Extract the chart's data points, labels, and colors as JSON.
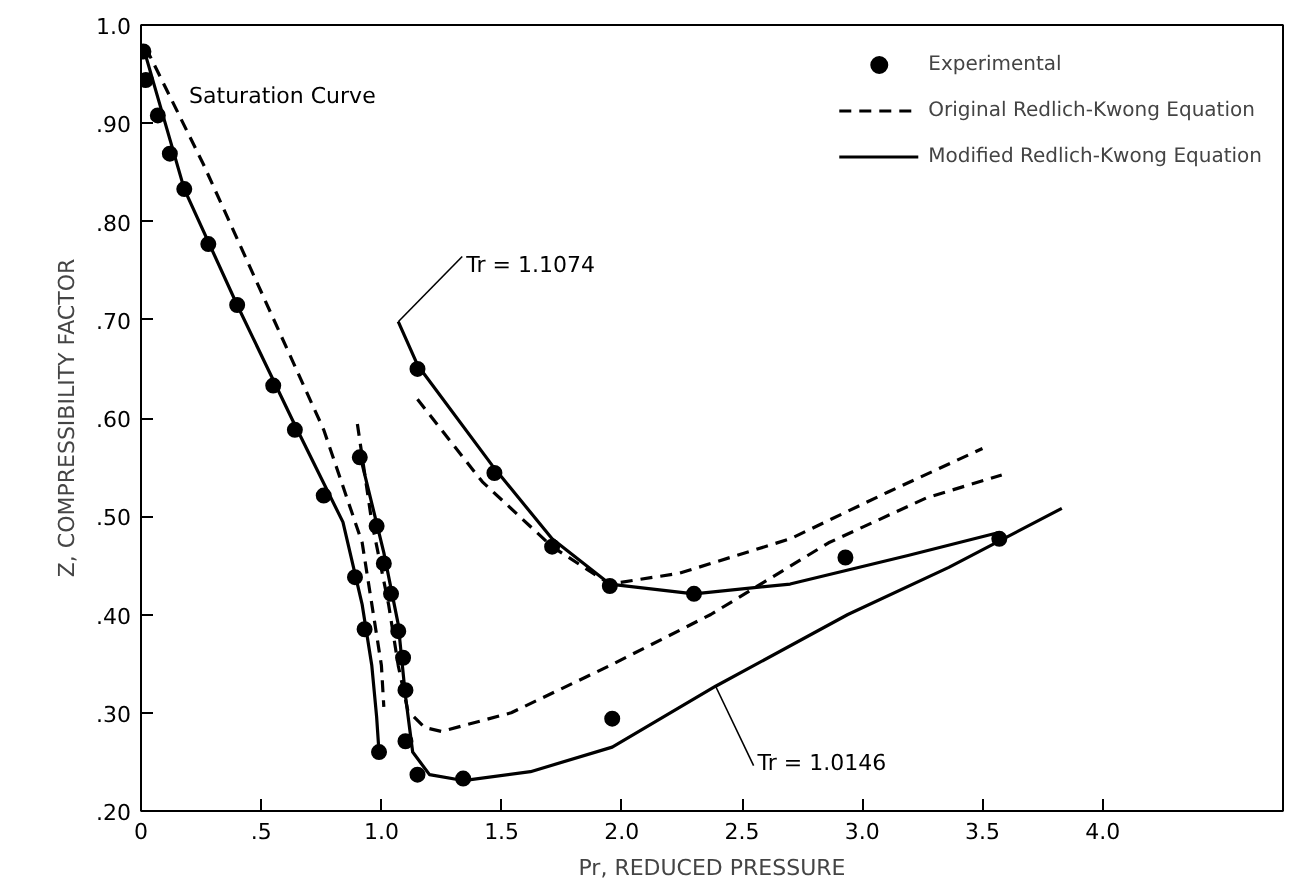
{
  "chart_data": {
    "type": "line",
    "xlabel": "Pr, REDUCED PRESSURE",
    "ylabel": "Z, COMPRESSIBILITY FACTOR",
    "xlim": [
      0,
      4.75
    ],
    "ylim": [
      0.2,
      1.0
    ],
    "xticks": [
      0,
      {
        "value": 0.5,
        "label": ".5"
      },
      {
        "value": 1.0,
        "label": "1.0"
      },
      {
        "value": 1.5,
        "label": "1.5"
      },
      {
        "value": 2.0,
        "label": "2.0"
      },
      {
        "value": 2.5,
        "label": "2.5"
      },
      {
        "value": 3.0,
        "label": "3.0"
      },
      {
        "value": 3.5,
        "label": "3.5"
      },
      {
        "value": 4.0,
        "label": "4.0"
      }
    ],
    "yticks": [
      {
        "value": 0.2,
        "label": ".20"
      },
      {
        "value": 0.3,
        "label": ".30"
      },
      {
        "value": 0.4,
        "label": ".40"
      },
      {
        "value": 0.5,
        "label": ".50"
      },
      {
        "value": 0.6,
        "label": ".60"
      },
      {
        "value": 0.7,
        "label": ".70"
      },
      {
        "value": 0.8,
        "label": ".80"
      },
      {
        "value": 0.9,
        "label": ".90"
      },
      {
        "value": 1.0,
        "label": "1.0"
      }
    ],
    "grid": false,
    "legend": "top right",
    "series": [
      {
        "type": "scatter",
        "name": "Experimental",
        "color": "#000000",
        "marker": "circle",
        "x": [
          0.01,
          0.02,
          0.07,
          0.12,
          0.18,
          0.28,
          0.4,
          0.55,
          0.64,
          0.76,
          0.89,
          0.93,
          0.99,
          0.91,
          0.98,
          1.01,
          1.04,
          1.07,
          1.09,
          1.1,
          1.1,
          1.15,
          1.34,
          1.96,
          1.15,
          1.47,
          1.71,
          1.95,
          2.3,
          2.93,
          3.57
        ],
        "values": [
          0.973,
          0.944,
          0.908,
          0.869,
          0.833,
          0.777,
          0.715,
          0.633,
          0.588,
          0.521,
          0.438,
          0.385,
          0.26,
          0.56,
          0.49,
          0.452,
          0.421,
          0.383,
          0.356,
          0.323,
          0.271,
          0.237,
          0.233,
          0.294,
          0.65,
          0.544,
          0.469,
          0.429,
          0.421,
          0.458,
          0.477
        ]
      },
      {
        "name": "Original Redlich-Kwong Equation",
        "color": "#000000",
        "line_style": "dashed",
        "x": [
          0.02,
          0.26,
          0.51,
          0.76,
          0.92,
          1.0,
          1.01
        ],
        "values": [
          0.977,
          0.858,
          0.723,
          0.588,
          0.473,
          0.348,
          0.306
        ]
      },
      {
        "name": "Modified Redlich-Kwong Equation",
        "color": "#000000",
        "line_style": "solid",
        "x": [
          0.01,
          0.18,
          0.4,
          0.63,
          0.84,
          0.92,
          0.96,
          0.98,
          0.99
        ],
        "values": [
          0.977,
          0.833,
          0.715,
          0.598,
          0.494,
          0.41,
          0.348,
          0.296,
          0.26
        ]
      },
      {
        "color": "#000000",
        "line_style": "dashed",
        "x": [
          0.9,
          0.96,
          1.03,
          1.07,
          1.11,
          1.18,
          1.25,
          1.54,
          1.95,
          2.37,
          2.86,
          3.27,
          3.58
        ],
        "values": [
          0.594,
          0.494,
          0.41,
          0.348,
          0.302,
          0.285,
          0.281,
          0.3,
          0.348,
          0.4,
          0.473,
          0.519,
          0.542
        ]
      },
      {
        "color": "#000000",
        "line_style": "solid",
        "x": [
          0.91,
          1.01,
          1.07,
          1.1,
          1.13,
          1.2,
          1.34,
          1.62,
          1.96,
          2.39,
          2.94,
          3.36,
          3.83
        ],
        "values": [
          0.563,
          0.463,
          0.39,
          0.317,
          0.26,
          0.237,
          0.231,
          0.24,
          0.265,
          0.327,
          0.4,
          0.448,
          0.508
        ]
      },
      {
        "color": "#000000",
        "line_style": "dashed",
        "x": [
          1.15,
          1.42,
          1.71,
          1.95,
          2.24,
          2.7,
          3.11,
          3.5
        ],
        "values": [
          0.619,
          0.535,
          0.469,
          0.431,
          0.442,
          0.477,
          0.525,
          0.569
        ]
      },
      {
        "color": "#000000",
        "line_style": "solid",
        "x": [
          1.07,
          1.15,
          1.46,
          1.71,
          1.95,
          2.3,
          2.7,
          3.19,
          3.56
        ],
        "values": [
          0.698,
          0.654,
          0.552,
          0.477,
          0.431,
          0.421,
          0.431,
          0.46,
          0.483
        ]
      }
    ],
    "annotations": [
      {
        "text": "Saturation Curve",
        "x": 0.2,
        "y": 0.915
      },
      {
        "text": "Tr = 1.1074",
        "x": 1.07,
        "y": 0.698
      },
      {
        "text": "Tr = 1.0146",
        "x": 2.39,
        "y": 0.327
      }
    ]
  }
}
